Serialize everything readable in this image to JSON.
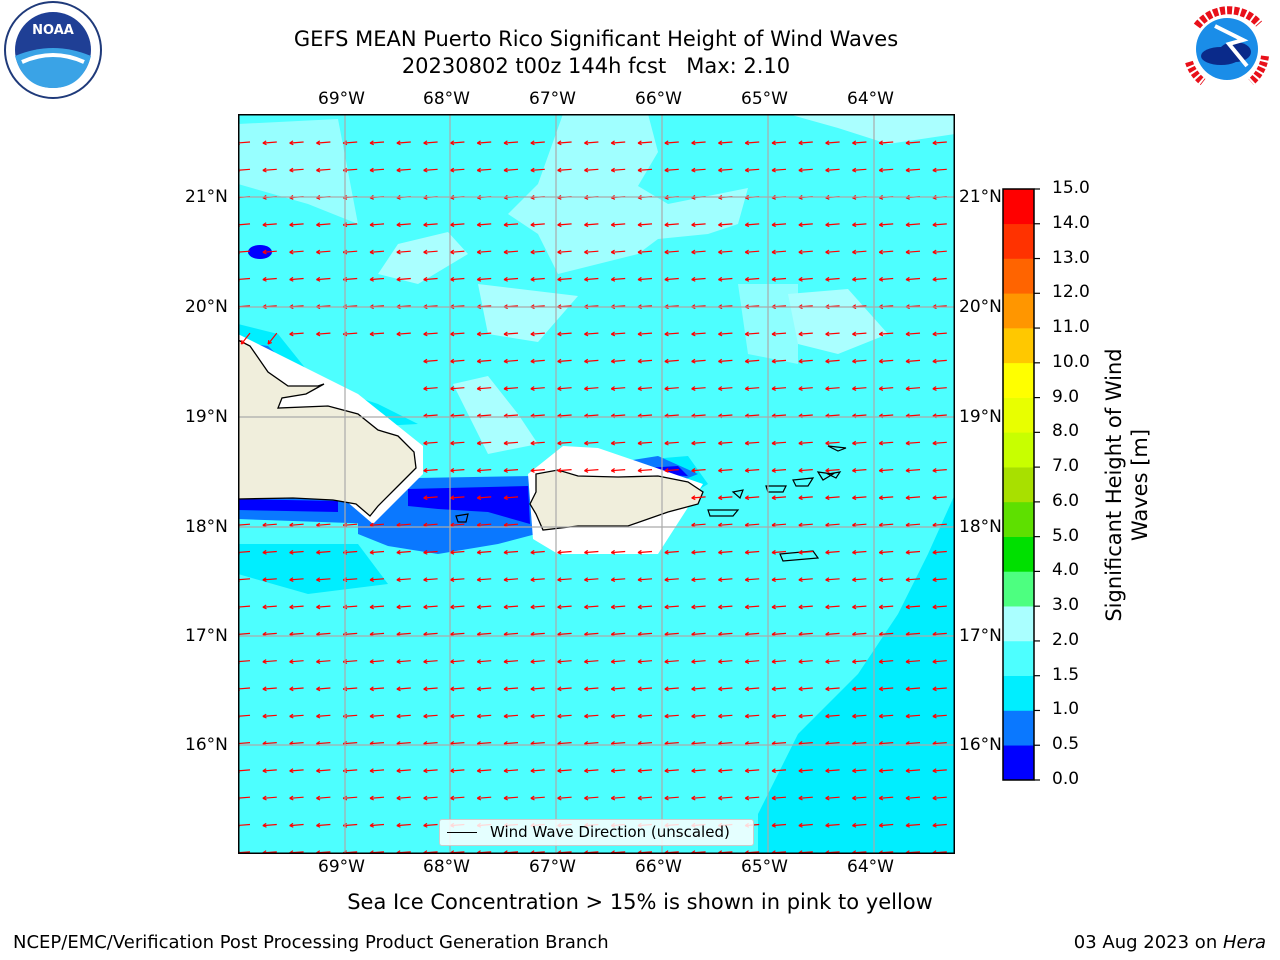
{
  "title_line1": "GEFS MEAN Puerto Rico Significant Height of Wind Waves",
  "title_line2": "20230802 t00z 144h fcst   Max: 2.10",
  "lon_labels": [
    "69°W",
    "68°W",
    "67°W",
    "66°W",
    "65°W",
    "64°W"
  ],
  "lat_labels": [
    "21°N",
    "20°N",
    "19°N",
    "18°N",
    "17°N",
    "16°N"
  ],
  "colorbar": {
    "label": "Significant Height of Wind Waves [m]",
    "ticks": [
      "0.0",
      "0.5",
      "1.0",
      "1.5",
      "2.0",
      "3.0",
      "4.0",
      "5.0",
      "6.0",
      "7.0",
      "8.0",
      "9.0",
      "10.0",
      "11.0",
      "12.0",
      "13.0",
      "14.0",
      "15.0"
    ],
    "colors": [
      "#0000ff",
      "#0a78ff",
      "#00eeff",
      "#4dffff",
      "#aaffff",
      "#4dff80",
      "#00e000",
      "#5ee000",
      "#a8e000",
      "#c8ff00",
      "#e8ff00",
      "#ffff00",
      "#ffc800",
      "#ff9600",
      "#ff6400",
      "#ff3200",
      "#ff0000"
    ]
  },
  "legend_label": "Wind Wave Direction (unscaled)",
  "sea_ice_note": "Sea Ice Concentration > 15% is shown in pink to yellow",
  "footer_left": "NCEP/EMC/Verification Post Processing Product Generation Branch",
  "footer_right_date": "03 Aug 2023 on ",
  "footer_right_host": "Hera",
  "logos": {
    "left": "noaa-logo",
    "right": "national-weather-service-logo"
  },
  "arrow_color": "#ff0000",
  "map_colors": {
    "land": "#f0eedc",
    "ocean_main": "#4dffff",
    "ocean_light": "#aaffff",
    "ocean_mid": "#00eeff",
    "near_coast": "#0a78ff",
    "coast_deep": "#0000ff"
  }
}
